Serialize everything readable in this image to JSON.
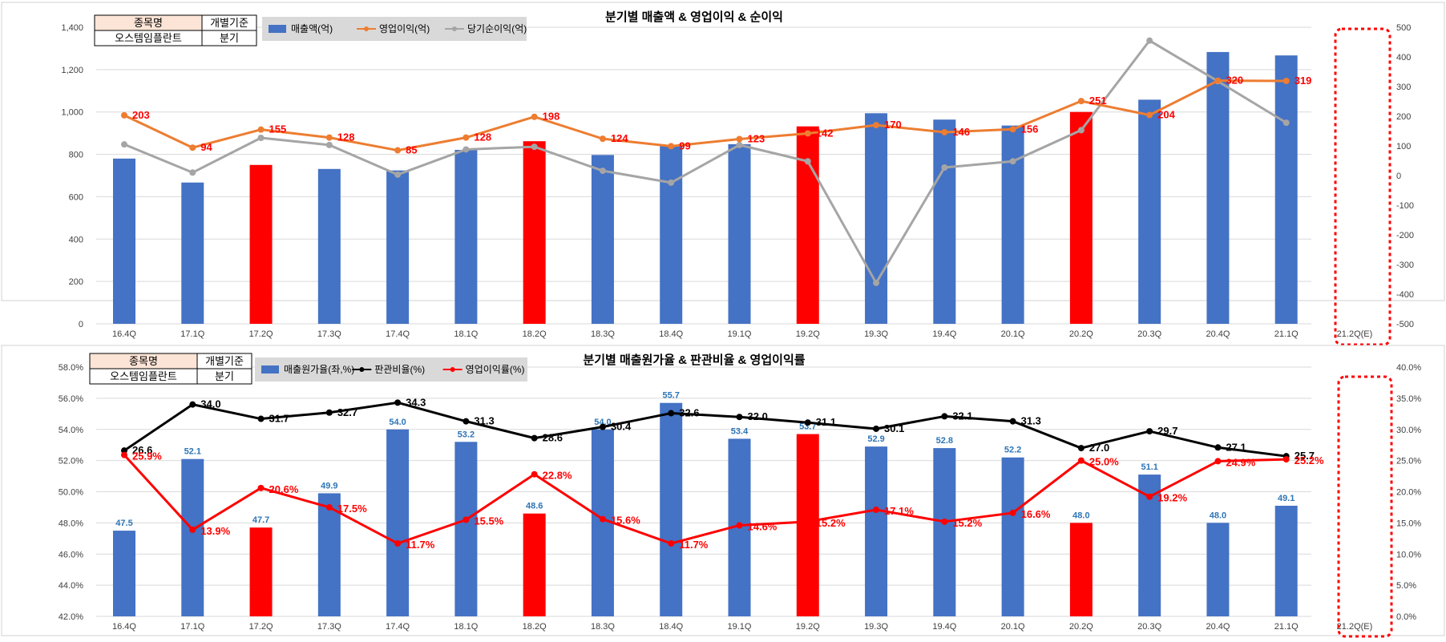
{
  "chart_data": [
    {
      "type": "bar+line",
      "title": "분기별 매출액 & 영업이익 & 순이익",
      "info_table": {
        "h1": "종목명",
        "h2": "개별기준",
        "v1": "오스템임플란트",
        "v2": "분기"
      },
      "categories": [
        "16.4Q",
        "17.1Q",
        "17.2Q",
        "17.3Q",
        "17.4Q",
        "18.1Q",
        "18.2Q",
        "18.3Q",
        "18.4Q",
        "19.1Q",
        "19.2Q",
        "19.3Q",
        "19.4Q",
        "20.1Q",
        "20.2Q",
        "20.3Q",
        "20.4Q",
        "21.1Q",
        "21.2Q(E)"
      ],
      "left_ylim": [
        0,
        1400
      ],
      "left_ticks": [
        "0",
        "200",
        "400",
        "600",
        "800",
        "1,000",
        "1,200",
        "1,400"
      ],
      "right_ylim": [
        -500,
        500
      ],
      "right_ticks": [
        "-500",
        "-400",
        "-300",
        "-200",
        "-100",
        "0",
        "100",
        "200",
        "300",
        "400",
        "500"
      ],
      "series": [
        {
          "name": "매출액(억)",
          "type": "bar",
          "axis": "left",
          "values": [
            780,
            667,
            750,
            731,
            724,
            821,
            862,
            797,
            838,
            848,
            932,
            994,
            964,
            936,
            1000,
            1058,
            1283,
            1267,
            null
          ]
        },
        {
          "name": "영업이익(억)",
          "type": "line",
          "axis": "right",
          "values": [
            203,
            94,
            155,
            128,
            85,
            128,
            198,
            124,
            99,
            123,
            142,
            170,
            146,
            156,
            251,
            204,
            320,
            319,
            null
          ],
          "labels": [
            "203",
            "94",
            "155",
            "128",
            "85",
            "128",
            "198",
            "124",
            "99",
            "123",
            "142",
            "170",
            "146",
            "156",
            "251",
            "204",
            "320",
            "319",
            ""
          ]
        },
        {
          "name": "당기순이익(억)",
          "type": "line",
          "axis": "right",
          "values": [
            105,
            10,
            127,
            103,
            3,
            88,
            97,
            16,
            -24,
            103,
            48,
            -362,
            27,
            48,
            153,
            455,
            318,
            178,
            null
          ]
        }
      ],
      "highlight_bars": [
        2,
        6,
        10,
        14
      ],
      "colors": {
        "bar": "#4472C4",
        "bar_highlight": "#FF0000",
        "op": "#ED7D31",
        "net": "#A5A5A5",
        "label_red": "#FF0000",
        "dotted_box": "#FF0000"
      }
    },
    {
      "type": "bar+line",
      "title": "분기별 매출원가율 & 판관비율 & 영업이익률",
      "info_table": {
        "h1": "종목명",
        "h2": "개별기준",
        "v1": "오스템임플란트",
        "v2": "분기"
      },
      "categories": [
        "16.4Q",
        "17.1Q",
        "17.2Q",
        "17.3Q",
        "17.4Q",
        "18.1Q",
        "18.2Q",
        "18.3Q",
        "18.4Q",
        "19.1Q",
        "19.2Q",
        "19.3Q",
        "19.4Q",
        "20.1Q",
        "20.2Q",
        "20.3Q",
        "20.4Q",
        "21.1Q",
        "21.2Q(E)"
      ],
      "left_ylim": [
        42,
        58
      ],
      "left_ticks": [
        "42.0%",
        "44.0%",
        "46.0%",
        "48.0%",
        "50.0%",
        "52.0%",
        "54.0%",
        "56.0%",
        "58.0%"
      ],
      "right_ylim": [
        0,
        40
      ],
      "right_ticks": [
        "0.0%",
        "5.0%",
        "10.0%",
        "15.0%",
        "20.0%",
        "25.0%",
        "30.0%",
        "35.0%",
        "40.0%"
      ],
      "series": [
        {
          "name": "매출원가율(좌,%)",
          "type": "bar",
          "axis": "left",
          "values": [
            47.5,
            52.1,
            47.7,
            49.9,
            54.0,
            53.2,
            48.6,
            54.0,
            55.7,
            53.4,
            53.7,
            52.9,
            52.8,
            52.2,
            48.0,
            51.1,
            48.0,
            49.1,
            null
          ],
          "labels": [
            "47.5",
            "52.1",
            "47.7",
            "49.9",
            "54.0",
            "53.2",
            "48.6",
            "54.0",
            "55.7",
            "53.4",
            "53.7",
            "52.9",
            "52.8",
            "52.2",
            "48.0",
            "51.1",
            "48.0",
            "49.1",
            ""
          ]
        },
        {
          "name": "판관비율(%)",
          "type": "line",
          "axis": "right",
          "values": [
            26.6,
            34.0,
            31.7,
            32.7,
            34.3,
            31.3,
            28.6,
            30.4,
            32.6,
            32.0,
            31.1,
            30.1,
            32.1,
            31.3,
            27.0,
            29.7,
            27.1,
            25.7,
            null
          ],
          "labels": [
            "26.6",
            "34.0",
            "31.7",
            "32.7",
            "34.3",
            "31.3",
            "28.6",
            "30.4",
            "32.6",
            "32.0",
            "31.1",
            "30.1",
            "32.1",
            "31.3",
            "27.0",
            "29.7",
            "27.1",
            "25.7",
            ""
          ]
        },
        {
          "name": "영업이익률(%)",
          "type": "line",
          "axis": "right",
          "values": [
            25.9,
            13.9,
            20.6,
            17.5,
            11.7,
            15.5,
            22.8,
            15.6,
            11.7,
            14.6,
            15.2,
            17.1,
            15.2,
            16.6,
            25.0,
            19.2,
            24.9,
            25.2,
            null
          ],
          "labels": [
            "25.9%",
            "13.9%",
            "20.6%",
            "17.5%",
            "11.7%",
            "15.5%",
            "22.8%",
            "15.6%",
            "11.7%",
            "14.6%",
            "15.2%",
            "17.1%",
            "15.2%",
            "16.6%",
            "25.0%",
            "19.2%",
            "24.9%",
            "25.2%",
            ""
          ]
        }
      ],
      "highlight_bars": [
        2,
        6,
        10,
        14
      ],
      "colors": {
        "bar": "#4472C4",
        "bar_highlight": "#FF0000",
        "expense": "#000000",
        "margin": "#FF0000",
        "bar_label": "#2E75B6",
        "dotted_box": "#FF0000"
      }
    }
  ]
}
